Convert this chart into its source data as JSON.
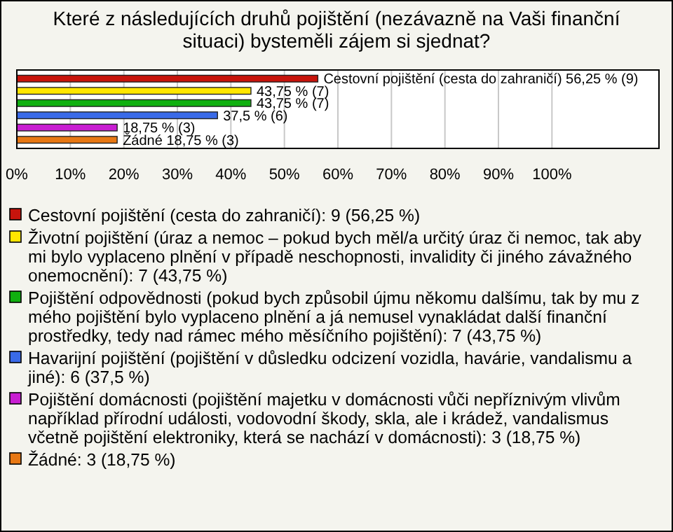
{
  "chart_data": {
    "type": "bar",
    "orientation": "horizontal",
    "stacked": true,
    "title": "Které z následujících druhů pojištění (nezávazně na Vaši finanční situaci) bysteměli zájem si sjednat?",
    "categories": [
      null,
      null,
      null,
      null,
      null,
      null
    ],
    "series": [
      {
        "name": "Cestovní pojištění (cesta do zahraničí): 9 (56,25 %)",
        "color": "#c8140c",
        "values": [
          56.25,
          null,
          null,
          null,
          null,
          null
        ],
        "value_labels": [
          "Cestovní pojištění (cesta do zahraničí) 56,25 % (9)",
          null,
          null,
          null,
          null,
          null
        ]
      },
      {
        "name": "Životní pojištění (úraz a nemoc – pokud bych měl/a určitý úraz či nemoc, tak aby mi bylo vyplaceno plnění v případě neschopnosti, invalidity či jiného závažného onemocnění): 7 (43,75 %)",
        "color": "#ffe600",
        "values": [
          null,
          43.75,
          null,
          null,
          null,
          null
        ],
        "value_labels": [
          null,
          "43,75 % (7)",
          null,
          null,
          null,
          null
        ]
      },
      {
        "name": "Pojištění odpovědnosti (pokud bych způsobil újmu někomu dalšímu, tak by mu z mého pojištění bylo vyplaceno plnění a já nemusel vynakládat další finanční prostředky, tedy nad rámec mého měsíčního pojištění): 7 (43,75 %)",
        "color": "#10b010",
        "values": [
          null,
          null,
          43.75,
          null,
          null,
          null
        ],
        "value_labels": [
          null,
          null,
          "43,75 % (7)",
          null,
          null,
          null
        ]
      },
      {
        "name": "Havarijní pojištění (pojištění v důsledku odcizení vozidla, havárie, vandalismu a jiné): 6 (37,5 %)",
        "color": "#3a6ae8",
        "values": [
          null,
          null,
          null,
          37.5,
          null,
          null
        ],
        "value_labels": [
          null,
          null,
          null,
          "37,5 % (6)",
          null,
          null
        ]
      },
      {
        "name": "Pojištění domácnosti (pojištění majetku v domácnosti vůči nepříznivým vlivům například přírodní události, vodovodní škody, skla, ale i krádež, vandalismus včetně pojištění elektroniky, která se nachází v domácnosti): 3 (18,75 %)",
        "color": "#c81ed2",
        "values": [
          null,
          null,
          null,
          null,
          18.75,
          null
        ],
        "value_labels": [
          null,
          null,
          null,
          null,
          "18,75 % (3)",
          null
        ]
      },
      {
        "name": "Žádné: 3 (18,75 %)",
        "color": "#e87814",
        "values": [
          null,
          null,
          null,
          null,
          null,
          18.75
        ],
        "value_labels": [
          null,
          null,
          null,
          null,
          null,
          "Žádné 18,75 % (3)"
        ]
      }
    ],
    "xlim": [
      0,
      120
    ],
    "xticks": [
      {
        "value": 0,
        "label": "0%"
      },
      {
        "value": 10,
        "label": "10%"
      },
      {
        "value": 20,
        "label": "20%"
      },
      {
        "value": 30,
        "label": "30%"
      },
      {
        "value": 40,
        "label": "40%"
      },
      {
        "value": 50,
        "label": "50%"
      },
      {
        "value": 60,
        "label": "60%"
      },
      {
        "value": 70,
        "label": "70%"
      },
      {
        "value": 80,
        "label": "80%"
      },
      {
        "value": 90,
        "label": "90%"
      },
      {
        "value": 100,
        "label": "100%"
      }
    ],
    "grid": "x",
    "tick_labels": "x",
    "legend": "bottom"
  }
}
